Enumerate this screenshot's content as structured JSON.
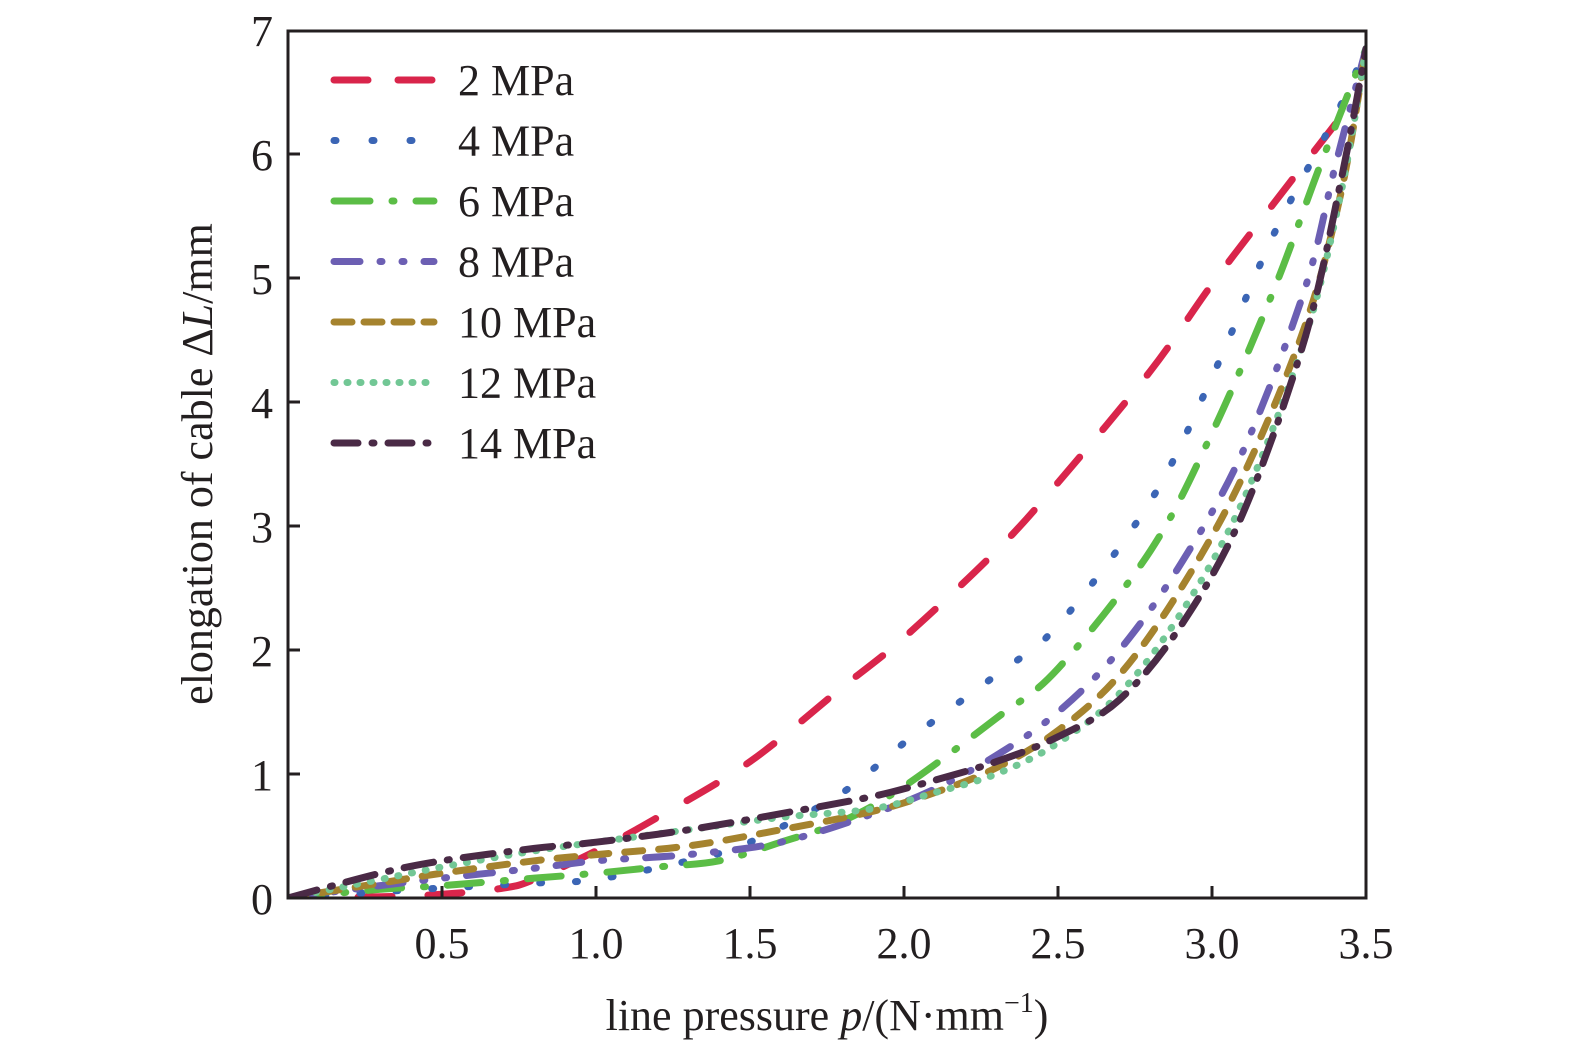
{
  "chart_data": {
    "type": "line",
    "title": "",
    "xlabel": "line pressure p/(N·mm⁻¹)",
    "xlabel_parts": {
      "pre": "line pressure ",
      "italic": "p",
      "post": "/(N·mm",
      "sup": "−1",
      "close": ")"
    },
    "ylabel": "elongation of cable ΔL/mm",
    "ylabel_parts": {
      "pre": "elongation of cable Δ",
      "italic": "L",
      "post": "/mm"
    },
    "xlim": [
      0,
      3.5
    ],
    "ylim": [
      0,
      7
    ],
    "xticks": [
      0.5,
      1.0,
      1.5,
      2.0,
      2.5,
      3.0,
      3.5
    ],
    "xtick_labels": [
      "0.5",
      "1.0",
      "1.5",
      "2.0",
      "2.5",
      "3.0",
      "3.5"
    ],
    "yticks": [
      0,
      1,
      2,
      3,
      4,
      5,
      6,
      7
    ],
    "ytick_labels": [
      "0",
      "1",
      "2",
      "3",
      "4",
      "5",
      "6",
      "7"
    ],
    "grid": false,
    "legend_position": "top-left",
    "series": [
      {
        "name": "2 MPa",
        "color": "#d9254b",
        "style": "dashed",
        "x": [
          0,
          0.3,
          0.5,
          0.7,
          0.8,
          1.0,
          1.2,
          1.5,
          1.8,
          2.0,
          2.3,
          2.5,
          2.8,
          3.0,
          3.2,
          3.45
        ],
        "y": [
          0,
          0.01,
          0.03,
          0.08,
          0.15,
          0.38,
          0.65,
          1.1,
          1.7,
          2.1,
          2.8,
          3.35,
          4.25,
          4.95,
          5.6,
          6.4
        ]
      },
      {
        "name": "4 MPa",
        "color": "#3b65b5",
        "style": "dotted",
        "x": [
          0,
          0.3,
          0.5,
          0.8,
          1.0,
          1.3,
          1.5,
          1.8,
          2.0,
          2.3,
          2.5,
          2.8,
          3.0,
          3.2,
          3.4,
          3.5
        ],
        "y": [
          0,
          0.05,
          0.08,
          0.12,
          0.15,
          0.3,
          0.45,
          0.85,
          1.25,
          1.8,
          2.2,
          3.2,
          4.2,
          5.35,
          6.3,
          6.85
        ]
      },
      {
        "name": "6 MPa",
        "color": "#5bbd46",
        "style": "dashdot",
        "x": [
          0,
          0.3,
          0.5,
          0.8,
          1.0,
          1.2,
          1.4,
          1.6,
          1.8,
          2.0,
          2.3,
          2.5,
          2.8,
          3.0,
          3.2,
          3.35,
          3.5
        ],
        "y": [
          0,
          0.07,
          0.1,
          0.16,
          0.2,
          0.25,
          0.3,
          0.45,
          0.62,
          0.9,
          1.45,
          1.85,
          2.8,
          3.75,
          4.9,
          5.9,
          6.85
        ]
      },
      {
        "name": "8 MPa",
        "color": "#6c5fb3",
        "style": "dashdotdot",
        "x": [
          0,
          0.3,
          0.5,
          0.8,
          1.0,
          1.3,
          1.6,
          1.9,
          2.1,
          2.3,
          2.5,
          2.7,
          2.9,
          3.1,
          3.3,
          3.4,
          3.5
        ],
        "y": [
          0,
          0.1,
          0.16,
          0.24,
          0.3,
          0.35,
          0.45,
          0.68,
          0.88,
          1.15,
          1.5,
          2.0,
          2.7,
          3.6,
          4.9,
          5.9,
          6.85
        ]
      },
      {
        "name": "10 MPa",
        "color": "#a5832e",
        "style": "shortdash",
        "x": [
          0,
          0.3,
          0.5,
          0.8,
          1.0,
          1.3,
          1.6,
          1.9,
          2.1,
          2.3,
          2.5,
          2.7,
          2.9,
          3.1,
          3.3,
          3.42,
          3.5
        ],
        "y": [
          0,
          0.12,
          0.2,
          0.3,
          0.35,
          0.42,
          0.55,
          0.7,
          0.85,
          1.05,
          1.35,
          1.8,
          2.5,
          3.4,
          4.6,
          5.7,
          6.85
        ]
      },
      {
        "name": "12 MPa",
        "color": "#72c795",
        "style": "densedot",
        "x": [
          0,
          0.3,
          0.5,
          0.8,
          1.0,
          1.3,
          1.6,
          1.9,
          2.1,
          2.3,
          2.5,
          2.7,
          2.9,
          3.1,
          3.3,
          3.42,
          3.5
        ],
        "y": [
          0,
          0.15,
          0.25,
          0.38,
          0.45,
          0.55,
          0.65,
          0.72,
          0.85,
          1.0,
          1.25,
          1.65,
          2.3,
          3.2,
          4.5,
          5.7,
          6.85
        ]
      },
      {
        "name": "14 MPa",
        "color": "#4a2a46",
        "style": "longdashdot",
        "x": [
          0,
          0.3,
          0.5,
          0.8,
          1.0,
          1.3,
          1.6,
          1.9,
          2.1,
          2.3,
          2.5,
          2.7,
          2.9,
          3.1,
          3.3,
          3.42,
          3.5
        ],
        "y": [
          0,
          0.2,
          0.3,
          0.4,
          0.45,
          0.55,
          0.68,
          0.82,
          0.95,
          1.1,
          1.3,
          1.6,
          2.2,
          3.1,
          4.5,
          5.8,
          6.85
        ]
      }
    ]
  }
}
